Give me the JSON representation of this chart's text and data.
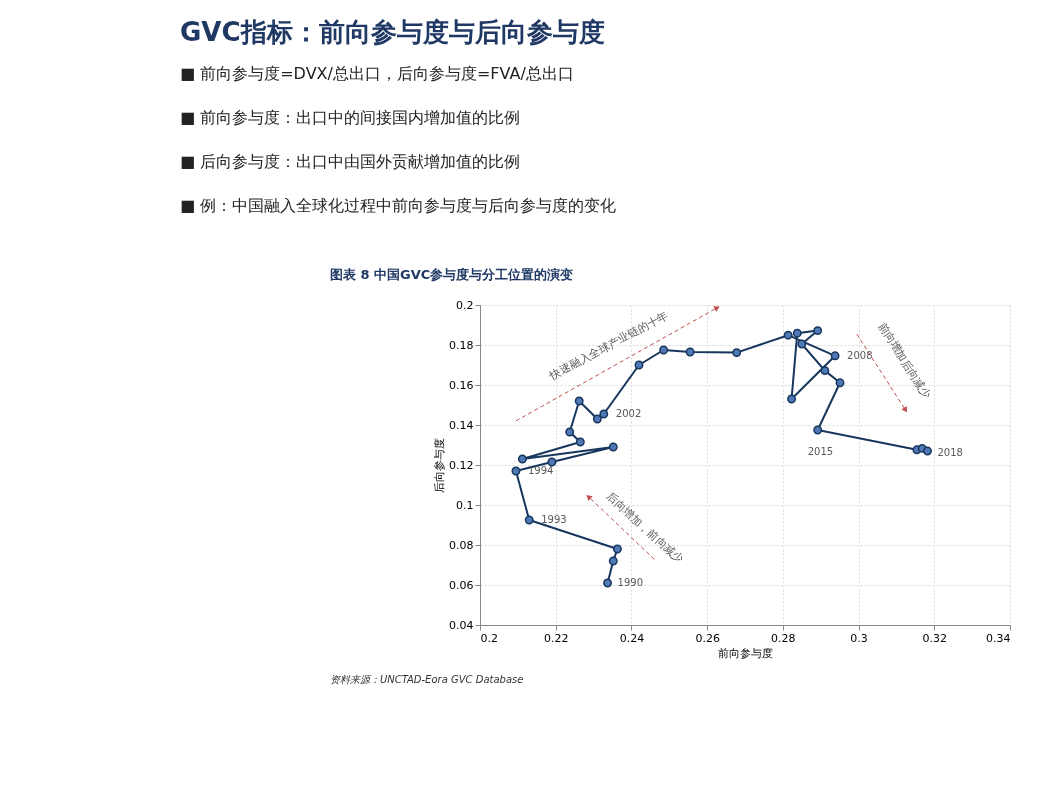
{
  "chart_data": {
    "type": "line",
    "title": "GVC指标：前向参与度与后向参与度",
    "subtitle": [
      "■  前向参与度=DVX/总出口，后向参与度=FVA/总出口",
      "■  前向参与度：出口中的间接国内增加值的比例",
      "■  后向参与度：出口中由国外贡献增加值的比例",
      "■  例：中国融入全球化过程中前向参与度与后向参与度的变化"
    ],
    "xlabel": "前向参与度",
    "ylabel": "后向参与度",
    "series": [
      {
        "color": "#17365d",
        "x": [
          0.2337,
          0.2352,
          0.2363,
          0.213,
          0.2095,
          0.219,
          0.2352,
          0.2112,
          0.2265,
          0.2237,
          0.2262,
          0.231,
          0.2327,
          0.242,
          0.2485,
          0.2555,
          0.2678,
          0.2814,
          0.2938,
          0.2823,
          0.2838,
          0.2892,
          0.285,
          0.2911,
          0.2951,
          0.2892,
          0.3154,
          0.3168,
          0.3182
        ],
        "values": [
          0.061,
          0.072,
          0.078,
          0.0925,
          0.117,
          0.1215,
          0.129,
          0.123,
          0.1315,
          0.1365,
          0.152,
          0.143,
          0.1455,
          0.17,
          0.1775,
          0.1765,
          0.1762,
          0.1849,
          0.1746,
          0.153,
          0.1859,
          0.1872,
          0.1805,
          0.1672,
          0.1611,
          0.1375,
          0.1276,
          0.1283,
          0.127
        ]
      }
    ],
    "xlim": [
      0.2,
      0.34
    ],
    "xticks": [
      0.2,
      0.22,
      0.24,
      0.26,
      0.28,
      0.3,
      0.32,
      0.34
    ],
    "ylim": [
      0.04,
      0.2
    ],
    "yticks": [
      0.04,
      0.06,
      0.08,
      0.1,
      0.12,
      0.14,
      0.16,
      0.18,
      0.2
    ],
    "grid": true,
    "marker": "circle",
    "line_style": "solid",
    "annotations": [
      "图表 8  中国GVC参与度与分工位置的演变",
      "资料来源：UNCTAD-Eora GVC Database",
      "快速融入全球产业链的十年",
      "后向增加，前向减少",
      "前向增加后向减少",
      {
        "text": "1990",
        "x": 0.2337,
        "y": 0.061
      },
      {
        "text": "1993",
        "x": 0.213,
        "y": 0.0925
      },
      {
        "text": "1994",
        "x": 0.2095,
        "y": 0.117
      },
      {
        "text": "2002",
        "x": 0.2327,
        "y": 0.1455
      },
      {
        "text": "2008",
        "x": 0.2938,
        "y": 0.1746
      },
      {
        "text": "2015",
        "x": 0.2892,
        "y": 0.1375
      },
      {
        "text": "2018",
        "x": 0.3182,
        "y": 0.127
      }
    ]
  }
}
